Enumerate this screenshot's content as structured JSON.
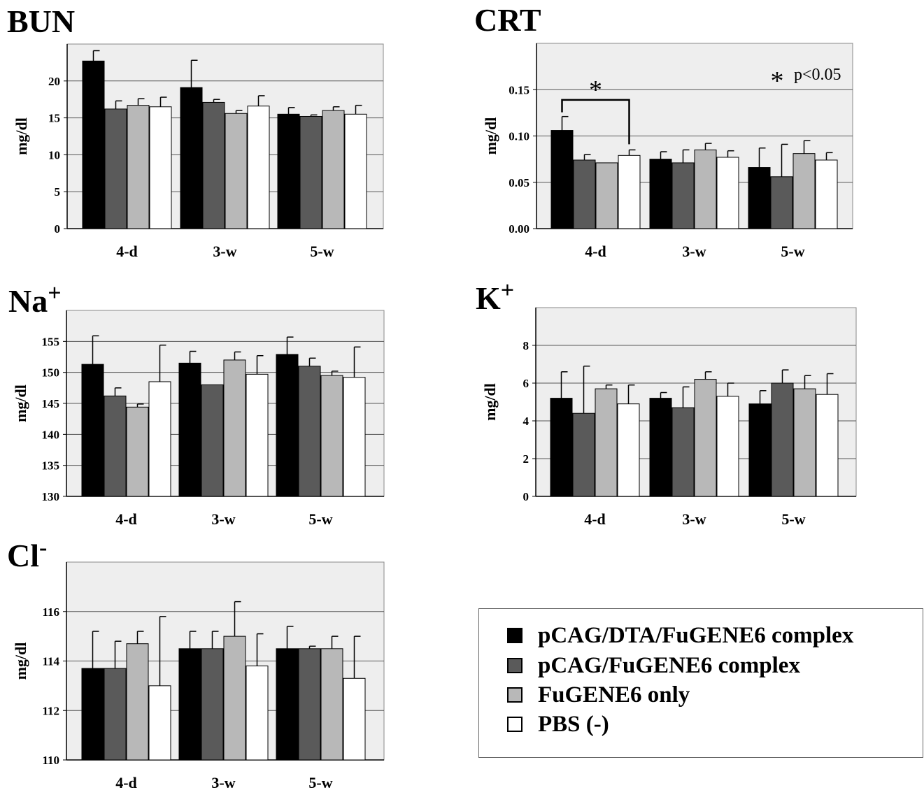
{
  "colors": {
    "plot_background": "#eeeeee",
    "gridline": "#555555",
    "series": [
      "#000000",
      "#5a5a5a",
      "#b8b8b8",
      "#ffffff"
    ]
  },
  "legend": {
    "entries": [
      {
        "label": "pCAG/DTA/FuGENE6 complex",
        "color": "#000000"
      },
      {
        "label": "pCAG/FuGENE6 complex",
        "color": "#5a5a5a"
      },
      {
        "label": "FuGENE6 only",
        "color": "#b8b8b8"
      },
      {
        "label": "PBS (-)",
        "color": "#ffffff"
      }
    ]
  },
  "chart_data": [
    {
      "id": "bun",
      "type": "bar",
      "title": "BUN",
      "title_sup": "",
      "ylabel": "mg/dl",
      "categories": [
        "4-d",
        "3-w",
        "5-w"
      ],
      "ylim": [
        0,
        25
      ],
      "yticks": [
        0,
        5,
        10,
        15,
        20
      ],
      "ytick_labels": [
        "0",
        "5",
        "10",
        "15",
        "20"
      ],
      "gridlines": true,
      "series": [
        {
          "name": "pCAG/DTA/FuGENE6 complex",
          "values": [
            22.7,
            19.1,
            15.5
          ],
          "errors": [
            1.4,
            3.7,
            0.9
          ]
        },
        {
          "name": "pCAG/FuGENE6 complex",
          "values": [
            16.2,
            17.1,
            15.2
          ],
          "errors": [
            1.1,
            0.4,
            0.2
          ]
        },
        {
          "name": "FuGENE6 only",
          "values": [
            16.7,
            15.6,
            16.0
          ],
          "errors": [
            0.9,
            0.4,
            0.5
          ]
        },
        {
          "name": "PBS (-)",
          "values": [
            16.5,
            16.6,
            15.5
          ],
          "errors": [
            1.3,
            1.4,
            1.2
          ]
        }
      ]
    },
    {
      "id": "crt",
      "type": "bar",
      "title": "CRT",
      "title_sup": "",
      "ylabel": "mg/dl",
      "categories": [
        "4-d",
        "3-w",
        "5-w"
      ],
      "ylim": [
        0,
        0.2
      ],
      "yticks": [
        0,
        0.05,
        0.1,
        0.15
      ],
      "ytick_labels": [
        "0.00",
        "0.05",
        "0.10",
        "0.15"
      ],
      "gridlines": true,
      "annotation": "p<0.05",
      "annotation_mark": "*",
      "significance": {
        "mark": "*",
        "category": 0,
        "from_series": 0,
        "to_series": 3,
        "y": 0.139
      },
      "series": [
        {
          "name": "pCAG/DTA/FuGENE6 complex",
          "values": [
            0.106,
            0.075,
            0.066
          ],
          "errors": [
            0.015,
            0.008,
            0.021
          ]
        },
        {
          "name": "pCAG/FuGENE6 complex",
          "values": [
            0.074,
            0.071,
            0.056
          ],
          "errors": [
            0.006,
            0.014,
            0.035
          ]
        },
        {
          "name": "FuGENE6 only",
          "values": [
            0.071,
            0.085,
            0.081
          ],
          "errors": [
            0.0,
            0.007,
            0.014
          ]
        },
        {
          "name": "PBS (-)",
          "values": [
            0.079,
            0.077,
            0.074
          ],
          "errors": [
            0.006,
            0.007,
            0.008
          ]
        }
      ]
    },
    {
      "id": "na",
      "type": "bar",
      "title": "Na",
      "title_sup": "+",
      "ylabel": "mg/dl",
      "categories": [
        "4-d",
        "3-w",
        "5-w"
      ],
      "ylim": [
        130,
        160
      ],
      "yticks": [
        130,
        135,
        140,
        145,
        150,
        155
      ],
      "ytick_labels": [
        "130",
        "135",
        "140",
        "145",
        "150",
        "155"
      ],
      "gridlines": true,
      "series": [
        {
          "name": "pCAG/DTA/FuGENE6 complex",
          "values": [
            151.3,
            151.5,
            152.9
          ],
          "errors": [
            4.6,
            1.9,
            2.8
          ]
        },
        {
          "name": "pCAG/FuGENE6 complex",
          "values": [
            146.2,
            148.0,
            151.0
          ],
          "errors": [
            1.3,
            0.0,
            1.3
          ]
        },
        {
          "name": "FuGENE6 only",
          "values": [
            144.4,
            152.0,
            149.5
          ],
          "errors": [
            0.5,
            1.3,
            0.7
          ]
        },
        {
          "name": "PBS (-)",
          "values": [
            148.5,
            149.7,
            149.2
          ],
          "errors": [
            5.9,
            3.0,
            4.9
          ]
        }
      ]
    },
    {
      "id": "k",
      "type": "bar",
      "title": "K",
      "title_sup": "+",
      "ylabel": "mg/dl",
      "categories": [
        "4-d",
        "3-w",
        "5-w"
      ],
      "ylim": [
        0,
        10
      ],
      "yticks": [
        0,
        2,
        4,
        6,
        8
      ],
      "ytick_labels": [
        "0",
        "2",
        "4",
        "6",
        "8"
      ],
      "gridlines": true,
      "series": [
        {
          "name": "pCAG/DTA/FuGENE6 complex",
          "values": [
            5.2,
            5.2,
            4.9
          ],
          "errors": [
            1.4,
            0.3,
            0.7
          ]
        },
        {
          "name": "pCAG/FuGENE6 complex",
          "values": [
            4.4,
            4.7,
            6.0
          ],
          "errors": [
            2.5,
            1.1,
            0.7
          ]
        },
        {
          "name": "FuGENE6 only",
          "values": [
            5.7,
            6.2,
            5.7
          ],
          "errors": [
            0.2,
            0.4,
            0.7
          ]
        },
        {
          "name": "PBS (-)",
          "values": [
            4.9,
            5.3,
            5.4
          ],
          "errors": [
            1.0,
            0.7,
            1.1
          ]
        }
      ]
    },
    {
      "id": "cl",
      "type": "bar",
      "title": "Cl",
      "title_sup": "-",
      "ylabel": "mg/dl",
      "categories": [
        "4-d",
        "3-w",
        "5-w"
      ],
      "ylim": [
        110,
        118
      ],
      "yticks": [
        110,
        112,
        114,
        116
      ],
      "ytick_labels": [
        "110",
        "112",
        "114",
        "116"
      ],
      "gridlines": true,
      "series": [
        {
          "name": "pCAG/DTA/FuGENE6 complex",
          "values": [
            113.7,
            114.5,
            114.5
          ],
          "errors": [
            1.5,
            0.7,
            0.9
          ]
        },
        {
          "name": "pCAG/FuGENE6 complex",
          "values": [
            113.7,
            114.5,
            114.5
          ],
          "errors": [
            1.1,
            0.7,
            0.1
          ]
        },
        {
          "name": "FuGENE6 only",
          "values": [
            114.7,
            115.0,
            114.5
          ],
          "errors": [
            0.5,
            1.4,
            0.5
          ]
        },
        {
          "name": "PBS (-)",
          "values": [
            113.0,
            113.8,
            113.3
          ],
          "errors": [
            2.8,
            1.3,
            1.7
          ]
        }
      ]
    }
  ]
}
